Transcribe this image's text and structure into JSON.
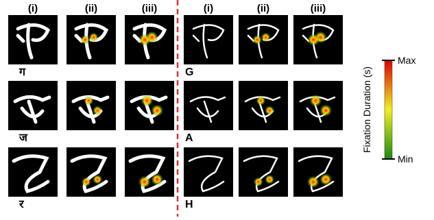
{
  "panels": [
    {
      "columns": [
        "(i)",
        "(ii)",
        "(iii)"
      ],
      "rows": [
        {
          "label": "ग"
        },
        {
          "label": "ज"
        },
        {
          "label": "र"
        }
      ]
    },
    {
      "columns": [
        "(i)",
        "(ii)",
        "(iii)"
      ],
      "rows": [
        {
          "label": "G"
        },
        {
          "label": "A"
        },
        {
          "label": "H"
        }
      ]
    }
  ],
  "colorbar": {
    "title": "Fixation Duration (s)",
    "max": "Max",
    "min": "Min"
  }
}
